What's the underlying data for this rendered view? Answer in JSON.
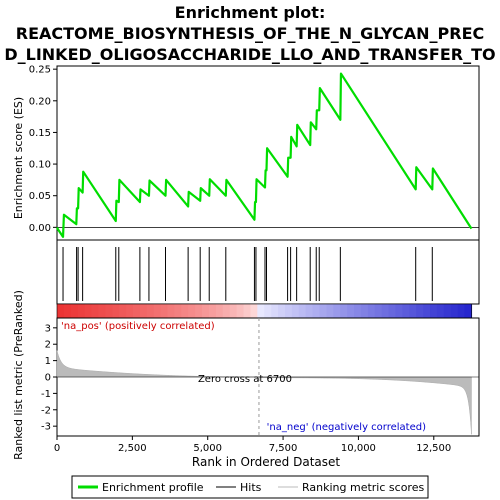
{
  "chart_data": {
    "type": "line",
    "title_lines": [
      "Enrichment plot:",
      "REACTOME_BIOSYNTHESIS_OF_THE_N_GLYCAN_PREC",
      "D_LINKED_OLIGOSACCHARIDE_LLO_AND_TRANSFER_TO"
    ],
    "es_panel": {
      "ylabel": "Enrichment score (ES)",
      "ylim": [
        -0.02,
        0.255
      ],
      "yticks": [
        0.0,
        0.05,
        0.1,
        0.15,
        0.2,
        0.25
      ],
      "ytick_labels": [
        "0.00",
        "0.05",
        "0.10",
        "0.15",
        "0.20",
        "0.25"
      ],
      "color": "#00dd00"
    },
    "rank_panel": {
      "ylabel": "Ranked list metric (PreRanked)",
      "ylim": [
        -3.6,
        3.6
      ],
      "yticks": [
        -3,
        -2,
        -1,
        0,
        1,
        2,
        3
      ],
      "ytick_labels": [
        "-3",
        "-2",
        "-1",
        "0",
        "1",
        "2",
        "3"
      ],
      "xlabel": "Rank in Ordered Dataset",
      "xlim": [
        0,
        14000
      ],
      "xticks": [
        0,
        2500,
        5000,
        7500,
        10000,
        12500
      ],
      "xtick_labels": [
        "0",
        "2,500",
        "5,000",
        "7,500",
        "10,000",
        "12,500"
      ],
      "pos_label": "'na_pos' (positively correlated)",
      "neg_label": "'na_neg' (negatively correlated)",
      "zero_cross_label": "Zero cross at 6700",
      "zero_cross": 6700,
      "pos_color": "#cc0000",
      "neg_color": "#0000cc"
    },
    "n_genes": 13750,
    "hits": [
      0,
      200,
      650,
      700,
      850,
      1950,
      2050,
      2750,
      3050,
      3600,
      4350,
      4750,
      5050,
      5600,
      6550,
      6600,
      6900,
      6950,
      7650,
      7750,
      7950,
      8400,
      8600,
      8700,
      9400,
      11900,
      12450
    ],
    "es_profile": {
      "x": [
        0,
        30,
        200,
        230,
        640,
        660,
        700,
        720,
        850,
        870,
        1950,
        1970,
        2050,
        2070,
        2750,
        2770,
        3050,
        3070,
        3600,
        3620,
        4350,
        4370,
        4750,
        4770,
        5050,
        5070,
        5600,
        5620,
        6550,
        6570,
        6600,
        6620,
        6900,
        6920,
        6950,
        6970,
        7650,
        7670,
        7750,
        7770,
        7950,
        7970,
        8400,
        8420,
        8600,
        8620,
        8700,
        8720,
        9400,
        9420,
        11900,
        11920,
        12450,
        12470,
        13750
      ],
      "y": [
        0.0,
        -0.003,
        -0.015,
        0.02,
        0.005,
        0.03,
        0.03,
        0.062,
        0.055,
        0.088,
        0.01,
        0.042,
        0.04,
        0.075,
        0.04,
        0.06,
        0.05,
        0.074,
        0.05,
        0.075,
        0.033,
        0.056,
        0.042,
        0.062,
        0.05,
        0.076,
        0.05,
        0.075,
        0.012,
        0.04,
        0.04,
        0.076,
        0.063,
        0.09,
        0.09,
        0.125,
        0.08,
        0.11,
        0.11,
        0.143,
        0.128,
        0.162,
        0.13,
        0.166,
        0.155,
        0.185,
        0.185,
        0.22,
        0.17,
        0.243,
        0.06,
        0.095,
        0.06,
        0.093,
        -0.002
      ]
    },
    "legend": [
      "Enrichment profile",
      "Hits",
      "Ranking metric scores"
    ]
  }
}
